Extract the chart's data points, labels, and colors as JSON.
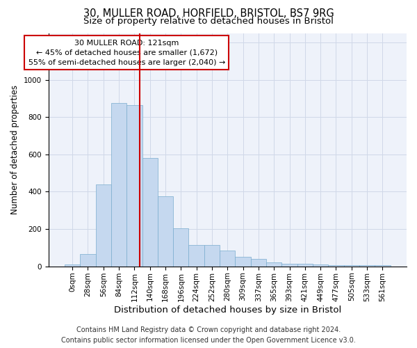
{
  "title1": "30, MULLER ROAD, HORFIELD, BRISTOL, BS7 9RG",
  "title2": "Size of property relative to detached houses in Bristol",
  "xlabel": "Distribution of detached houses by size in Bristol",
  "ylabel": "Number of detached properties",
  "categories": [
    "0sqm",
    "28sqm",
    "56sqm",
    "84sqm",
    "112sqm",
    "140sqm",
    "168sqm",
    "196sqm",
    "224sqm",
    "252sqm",
    "280sqm",
    "309sqm",
    "337sqm",
    "365sqm",
    "393sqm",
    "421sqm",
    "449sqm",
    "477sqm",
    "505sqm",
    "533sqm",
    "561sqm"
  ],
  "bar_heights": [
    10,
    65,
    440,
    875,
    865,
    580,
    375,
    205,
    115,
    115,
    85,
    50,
    40,
    20,
    15,
    15,
    10,
    5,
    5,
    5,
    5
  ],
  "bar_color": "#c5d8ef",
  "bar_edgecolor": "#7aacce",
  "bar_width": 1.0,
  "vline_x": 4.32,
  "vline_color": "#cc0000",
  "annotation_line1": "30 MULLER ROAD: 121sqm",
  "annotation_line2": "← 45% of detached houses are smaller (1,672)",
  "annotation_line3": "55% of semi-detached houses are larger (2,040) →",
  "ylim": [
    0,
    1250
  ],
  "yticks": [
    0,
    200,
    400,
    600,
    800,
    1000,
    1200
  ],
  "grid_color": "#d0d8e8",
  "background_color": "#eef2fa",
  "footer1": "Contains HM Land Registry data © Crown copyright and database right 2024.",
  "footer2": "Contains public sector information licensed under the Open Government Licence v3.0.",
  "title1_fontsize": 10.5,
  "title2_fontsize": 9.5,
  "xlabel_fontsize": 9.5,
  "ylabel_fontsize": 8.5,
  "tick_fontsize": 7.5,
  "annotation_fontsize": 8.0,
  "footer_fontsize": 7.0
}
